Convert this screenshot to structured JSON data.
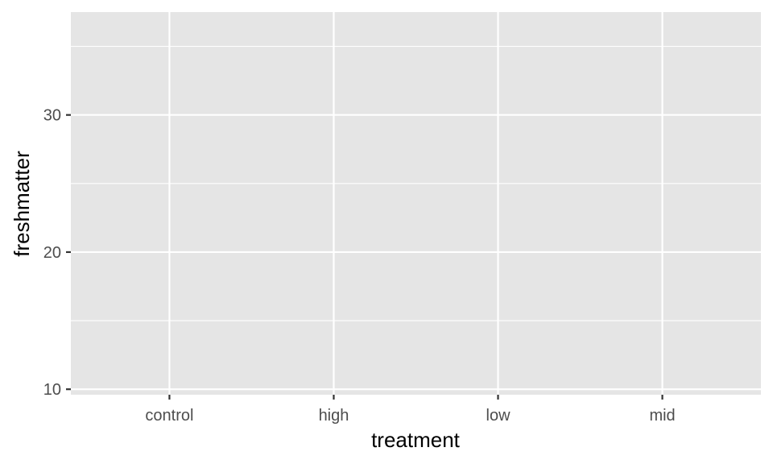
{
  "chart_data": {
    "type": "scatter",
    "title": "",
    "xlabel": "treatment",
    "ylabel": "freshmatter",
    "categories": [
      "control",
      "high",
      "low",
      "mid"
    ],
    "ylim": [
      9.6,
      37.5
    ],
    "y_ticks": [
      10,
      20,
      30
    ],
    "y_minor_ticks": [
      15,
      25,
      35
    ],
    "series": [],
    "grid": true,
    "legend": "none",
    "colors": {
      "panel": "#e5e5e5",
      "grid": "#ffffff",
      "tick": "#333333",
      "tick_label": "#4d4d4d"
    }
  }
}
